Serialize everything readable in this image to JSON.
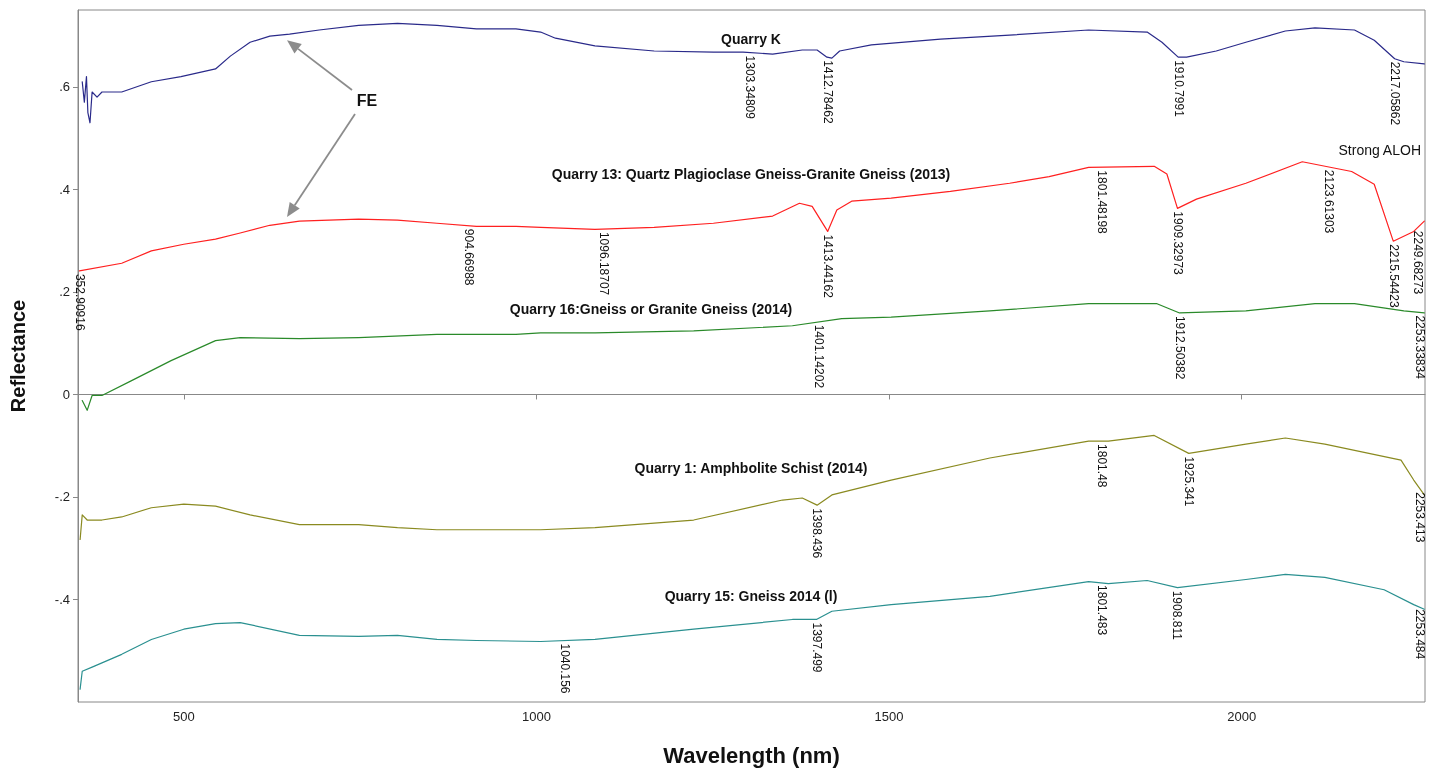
{
  "chart_data": {
    "type": "line",
    "xlabel": "Wavelength (nm)",
    "ylabel": "Reflectance",
    "xlim": [
      350,
      2260
    ],
    "ylim": [
      -0.6,
      0.75
    ],
    "xticks": [
      500,
      1000,
      1500,
      2000
    ],
    "yticks": [
      {
        "value": -0.4,
        "label": "-.4"
      },
      {
        "value": -0.2,
        "label": "-.2"
      },
      0,
      {
        "value": 0.2,
        "label": ".2"
      },
      {
        "value": 0.4,
        "label": ".4"
      },
      {
        "value": 0.6,
        "label": ".6"
      }
    ],
    "series": [
      {
        "name": "Quarry K",
        "color": "#2a2a8a",
        "x": [
          356,
          359,
          362,
          364,
          367,
          370,
          377,
          384,
          412,
          454,
          496,
          545,
          566,
          594,
          622,
          650,
          692,
          748,
          803,
          859,
          915,
          971,
          1006,
          1027,
          1083,
          1167,
          1251,
          1293,
          1335,
          1377,
          1398,
          1412,
          1419,
          1430,
          1475,
          1573,
          1671,
          1783,
          1866,
          1887,
          1910,
          1922,
          1964,
          2006,
          2062,
          2104,
          2160,
          2188,
          2217,
          2230,
          2259
        ],
        "values": [
          0.61,
          0.57,
          0.62,
          0.55,
          0.53,
          0.59,
          0.58,
          0.59,
          0.59,
          0.61,
          0.62,
          0.635,
          0.66,
          0.687,
          0.699,
          0.703,
          0.711,
          0.72,
          0.724,
          0.72,
          0.713,
          0.713,
          0.707,
          0.695,
          0.68,
          0.67,
          0.668,
          0.668,
          0.664,
          0.672,
          0.672,
          0.658,
          0.656,
          0.67,
          0.682,
          0.693,
          0.701,
          0.711,
          0.707,
          0.687,
          0.658,
          0.658,
          0.67,
          0.687,
          0.709,
          0.715,
          0.711,
          0.691,
          0.655,
          0.649,
          0.645
        ]
      },
      {
        "name": "Quarry 13: Quartz Plagioclase Gneiss-Granite Gneiss (2013)",
        "color": "#ff2020",
        "x": [
          352,
          412,
          454,
          500,
          545,
          580,
          622,
          664,
          748,
          803,
          859,
          915,
          971,
          1006,
          1083,
          1167,
          1251,
          1335,
          1373,
          1391,
          1413,
          1426,
          1447,
          1503,
          1587,
          1671,
          1727,
          1783,
          1876,
          1894,
          1909,
          1936,
          2006,
          2086,
          2156,
          2188,
          2215,
          2244,
          2259
        ],
        "values": [
          0.241,
          0.256,
          0.28,
          0.293,
          0.303,
          0.315,
          0.33,
          0.338,
          0.342,
          0.34,
          0.334,
          0.328,
          0.328,
          0.326,
          0.322,
          0.326,
          0.334,
          0.348,
          0.373,
          0.367,
          0.318,
          0.36,
          0.377,
          0.383,
          0.396,
          0.412,
          0.425,
          0.443,
          0.445,
          0.43,
          0.363,
          0.381,
          0.412,
          0.454,
          0.435,
          0.41,
          0.299,
          0.318,
          0.338
        ]
      },
      {
        "name": "Quarry 16:Gneiss or Granite Gneiss (2014)",
        "color": "#2a8a2a",
        "x": [
          356,
          363,
          370,
          384,
          426,
          482,
          545,
          580,
          664,
          748,
          859,
          971,
          1006,
          1083,
          1223,
          1363,
          1433,
          1503,
          1643,
          1783,
          1880,
          1912,
          2006,
          2104,
          2160,
          2230,
          2259
        ],
        "values": [
          -0.012,
          -0.031,
          -0.002,
          -0.002,
          0.027,
          0.066,
          0.105,
          0.111,
          0.109,
          0.111,
          0.117,
          0.117,
          0.12,
          0.12,
          0.124,
          0.134,
          0.148,
          0.151,
          0.163,
          0.177,
          0.177,
          0.159,
          0.163,
          0.177,
          0.177,
          0.163,
          0.159
        ]
      },
      {
        "name": "Quarry 1: Amphbolite Schist (2014)",
        "color": "#8a8a20",
        "x": [
          353,
          356,
          363,
          384,
          412,
          454,
          500,
          545,
          594,
          664,
          748,
          803,
          859,
          915,
          1006,
          1083,
          1223,
          1349,
          1377,
          1398,
          1419,
          1503,
          1643,
          1783,
          1811,
          1876,
          1925,
          2006,
          2062,
          2118,
          2226,
          2244,
          2259
        ],
        "values": [
          -0.283,
          -0.235,
          -0.245,
          -0.245,
          -0.239,
          -0.221,
          -0.214,
          -0.218,
          -0.235,
          -0.254,
          -0.254,
          -0.26,
          -0.264,
          -0.264,
          -0.264,
          -0.26,
          -0.245,
          -0.206,
          -0.202,
          -0.216,
          -0.196,
          -0.167,
          -0.124,
          -0.091,
          -0.091,
          -0.08,
          -0.115,
          -0.097,
          -0.085,
          -0.097,
          -0.128,
          -0.167,
          -0.196
        ]
      },
      {
        "name": "Quarry 15: Gneiss 2014 (l)",
        "color": "#2a9090",
        "x": [
          353,
          356,
          370,
          412,
          454,
          500,
          545,
          580,
          664,
          748,
          803,
          859,
          915,
          1006,
          1083,
          1223,
          1363,
          1397,
          1419,
          1503,
          1643,
          1783,
          1811,
          1866,
          1909,
          2006,
          2062,
          2118,
          2202,
          2244,
          2259
        ],
        "values": [
          -0.575,
          -0.54,
          -0.532,
          -0.507,
          -0.478,
          -0.458,
          -0.447,
          -0.445,
          -0.47,
          -0.472,
          -0.47,
          -0.478,
          -0.48,
          -0.482,
          -0.478,
          -0.458,
          -0.439,
          -0.439,
          -0.423,
          -0.41,
          -0.394,
          -0.365,
          -0.369,
          -0.363,
          -0.377,
          -0.361,
          -0.351,
          -0.357,
          -0.381,
          -0.41,
          -0.419
        ]
      }
    ],
    "annotations": [
      "FE",
      "Strong ALOH",
      {
        "text": "1303.34809",
        "x": 1303.34809,
        "y": 0.667
      },
      {
        "text": "1412.78462",
        "x": 1412.78462,
        "y": 0.658
      },
      {
        "text": "1910.7991",
        "x": 1910.7991,
        "y": 0.658
      },
      {
        "text": "2217.05862",
        "x": 2217.05862,
        "y": 0.655
      },
      {
        "text": "352.90916",
        "x": 352.90916,
        "y": 0.241
      },
      {
        "text": "904.66988",
        "x": 904.66988,
        "y": 0.329
      },
      {
        "text": "1096.18707",
        "x": 1096.18707,
        "y": 0.323
      },
      {
        "text": "1413.44162",
        "x": 1413.44162,
        "y": 0.318
      },
      {
        "text": "1801.48198",
        "x": 1801.48198,
        "y": 0.443
      },
      {
        "text": "1909.32973",
        "x": 1909.32973,
        "y": 0.363
      },
      {
        "text": "2123.61303",
        "x": 2123.61303,
        "y": 0.444
      },
      {
        "text": "2215.54423",
        "x": 2215.54423,
        "y": 0.299
      },
      {
        "text": "2249.68273",
        "x": 2249.68273,
        "y": 0.325
      },
      {
        "text": "1401.14202",
        "x": 1401.14202,
        "y": 0.142
      },
      {
        "text": "1912.50382",
        "x": 1912.50382,
        "y": 0.159
      },
      {
        "text": "2253.33834",
        "x": 2253.33834,
        "y": 0.16
      },
      {
        "text": "1398.436",
        "x": 1398.436,
        "y": -0.216
      },
      {
        "text": "1801.48",
        "x": 1801.48,
        "y": -0.091
      },
      {
        "text": "1925.341",
        "x": 1925.341,
        "y": -0.115
      },
      {
        "text": "2253.413",
        "x": 2253.413,
        "y": -0.185
      },
      {
        "text": "1040.156",
        "x": 1040.156,
        "y": -0.48
      },
      {
        "text": "1397.499",
        "x": 1397.499,
        "y": -0.439
      },
      {
        "text": "1801.483",
        "x": 1801.483,
        "y": -0.366
      },
      {
        "text": "1908.811",
        "x": 1908.811,
        "y": -0.377
      },
      {
        "text": "2253.484",
        "x": 2253.484,
        "y": -0.413
      }
    ]
  }
}
